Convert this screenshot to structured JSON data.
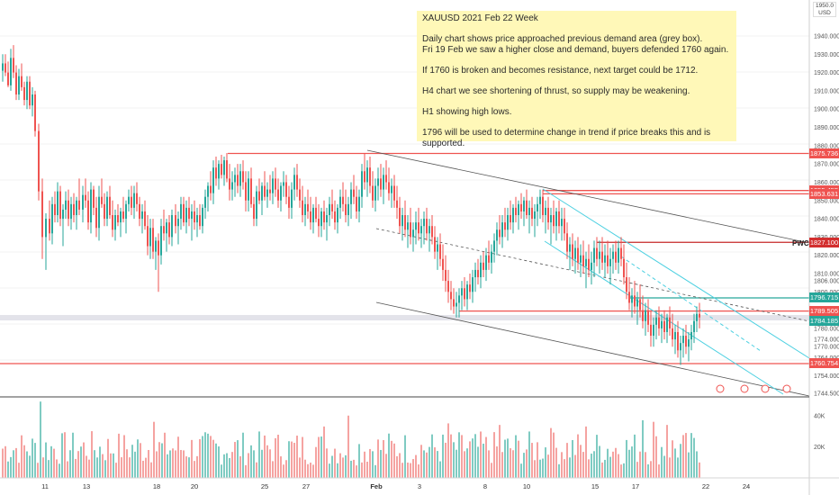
{
  "note": {
    "title": "XAUUSD 2021 Feb 22 Week",
    "lines": [
      "Daily chart shows price approached previous demand area (grey box).",
      "Fri 19 Feb we saw a higher close and demand, buyers defended 1760 again.",
      "If 1760 is broken and becomes resistance, next target could be 1712.",
      "H4 chart we see shortening of thrust, so supply may be weakening.",
      "H1 showing high lows.",
      "1796 will be used to determine change in trend if price breaks this and is supported."
    ]
  },
  "currency": "USD",
  "currency_top": "1950.0",
  "pwc_label": "PWC",
  "chart_data": {
    "type": "candlestick",
    "price_axis": {
      "ticks": [
        1940,
        1930,
        1920,
        1910,
        1900,
        1890,
        1880,
        1870,
        1860,
        1850,
        1840,
        1830,
        1820,
        1810,
        1806,
        1800,
        1790,
        1780,
        1774,
        1770,
        1764,
        1754,
        1744.5
      ],
      "tick_labels": [
        "1940.000",
        "1930.000",
        "1920.000",
        "1910.000",
        "1900.000",
        "1890.000",
        "1880.000",
        "1870.000",
        "1860.000",
        "1850.000",
        "1840.000",
        "1830.000",
        "1820.000",
        "1810.000",
        "1806.000",
        "1800.000",
        "1790.000",
        "1780.000",
        "1774.000",
        "1770.000",
        "1764.000",
        "1754.000",
        "1744.500"
      ]
    },
    "volume_axis": {
      "ticks": [
        40000,
        20000
      ],
      "tick_labels": [
        "40K",
        "20K"
      ]
    },
    "x_labels": [
      "11",
      "13",
      "18",
      "20",
      "25",
      "27",
      "Feb",
      "3",
      "8",
      "10",
      "15",
      "17",
      "22",
      "24"
    ],
    "price_tags": [
      {
        "value": 1875.736,
        "label": "1875.736",
        "color": "#ef5350"
      },
      {
        "value": 1855.455,
        "label": "1855.455",
        "color": "#ef5350"
      },
      {
        "value": 1853.631,
        "label": "1853.631",
        "color": "#ef5350"
      },
      {
        "value": 1827.1,
        "label": "1827.100",
        "color": "#d32f2f"
      },
      {
        "value": 1796.715,
        "label": "1796.715",
        "color": "#26a69a"
      },
      {
        "value": 1789.505,
        "label": "1789.505",
        "color": "#ef5350"
      },
      {
        "value": 1784.185,
        "label": "1784.185",
        "color": "#26a69a"
      },
      {
        "value": 1760.754,
        "label": "1760.754",
        "color": "#ef5350"
      }
    ],
    "horizontal_levels": [
      1875.736,
      1855.455,
      1853.631,
      1827.1,
      1796.715,
      1789.505,
      1760.754
    ],
    "bull_color": "#26a69a",
    "bear_color": "#ef5350",
    "channel_color": "#4dd0e1",
    "trend_color": "#555555"
  }
}
